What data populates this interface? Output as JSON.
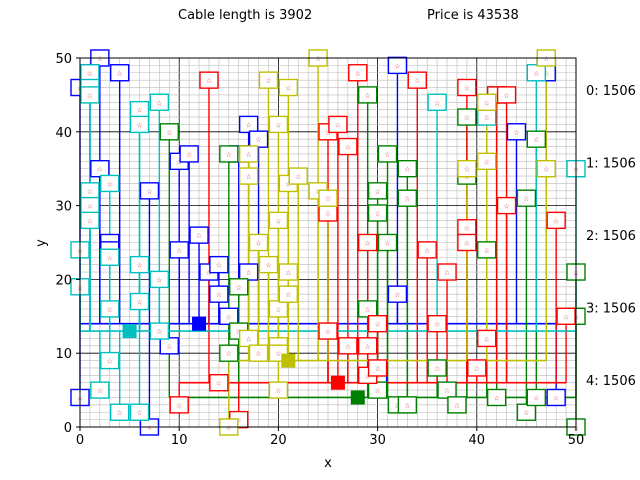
{
  "header": {
    "left_title": "Cable length is 3902",
    "right_title": "Price is 43538"
  },
  "colors": {
    "blue": "#0000ff",
    "green": "#008000",
    "red": "#ff0000",
    "cyan": "#00bfbf",
    "yellow": "#bfbf00",
    "grid_major": "#000000",
    "grid_minor": "#bbbbbb",
    "marker_star": "#cc3333"
  },
  "chart_data": {
    "type": "scatter",
    "xlabel": "x",
    "ylabel": "y",
    "xlim": [
      0,
      50
    ],
    "ylim": [
      0,
      50
    ],
    "xticks": [
      0,
      10,
      20,
      30,
      40,
      50
    ],
    "yticks": [
      0,
      10,
      20,
      30,
      40,
      50
    ],
    "grid": "major-and-minor",
    "right_labels": [
      "0: 1506",
      "1: 1506",
      "2: 1506",
      "3: 1506",
      "4: 1506"
    ],
    "series": [
      {
        "color": "blue",
        "hub": [
          12,
          14
        ],
        "trunk_y": 14,
        "points": [
          [
            0,
            46
          ],
          [
            0,
            4
          ],
          [
            2,
            50
          ],
          [
            1,
            48
          ],
          [
            4,
            48
          ],
          [
            3,
            25
          ],
          [
            3,
            24
          ],
          [
            2,
            35
          ],
          [
            7,
            32
          ],
          [
            7,
            0
          ],
          [
            9,
            11
          ],
          [
            10,
            36
          ],
          [
            10,
            24
          ],
          [
            11,
            37
          ],
          [
            12,
            26
          ],
          [
            13,
            21
          ],
          [
            14,
            22
          ],
          [
            14,
            18
          ],
          [
            15,
            15
          ],
          [
            16,
            37
          ],
          [
            17,
            41
          ],
          [
            18,
            39
          ],
          [
            17,
            21
          ],
          [
            32,
            49
          ],
          [
            30,
            7
          ],
          [
            32,
            18
          ],
          [
            44,
            40
          ],
          [
            47,
            48
          ],
          [
            48,
            4
          ]
        ]
      },
      {
        "color": "green",
        "hub": [
          28,
          4
        ],
        "trunk_y": 4,
        "points": [
          [
            9,
            40
          ],
          [
            15,
            37
          ],
          [
            16,
            19
          ],
          [
            15,
            10
          ],
          [
            16,
            13
          ],
          [
            29,
            45
          ],
          [
            30,
            32
          ],
          [
            30,
            29
          ],
          [
            30,
            5
          ],
          [
            31,
            37
          ],
          [
            31,
            25
          ],
          [
            33,
            35
          ],
          [
            33,
            31
          ],
          [
            32,
            3
          ],
          [
            33,
            3
          ],
          [
            29,
            16
          ],
          [
            36,
            8
          ],
          [
            37,
            5
          ],
          [
            38,
            3
          ],
          [
            39,
            34
          ],
          [
            39,
            42
          ],
          [
            41,
            24
          ],
          [
            42,
            45
          ],
          [
            42,
            4
          ],
          [
            45,
            31
          ],
          [
            45,
            2
          ],
          [
            46,
            4
          ],
          [
            46,
            39
          ],
          [
            50,
            21
          ],
          [
            50,
            15
          ],
          [
            50,
            0
          ]
        ]
      },
      {
        "color": "red",
        "hub": [
          26,
          6
        ],
        "trunk_y": 6,
        "points": [
          [
            10,
            3
          ],
          [
            13,
            47
          ],
          [
            14,
            6
          ],
          [
            16,
            1
          ],
          [
            25,
            40
          ],
          [
            25,
            29
          ],
          [
            26,
            41
          ],
          [
            27,
            38
          ],
          [
            25,
            13
          ],
          [
            27,
            11
          ],
          [
            28,
            48
          ],
          [
            29,
            25
          ],
          [
            29,
            11
          ],
          [
            29,
            7
          ],
          [
            30,
            14
          ],
          [
            30,
            8
          ],
          [
            34,
            47
          ],
          [
            35,
            24
          ],
          [
            36,
            14
          ],
          [
            37,
            21
          ],
          [
            39,
            46
          ],
          [
            39,
            27
          ],
          [
            39,
            25
          ],
          [
            41,
            12
          ],
          [
            40,
            8
          ],
          [
            42,
            45
          ],
          [
            43,
            45
          ],
          [
            43,
            30
          ],
          [
            48,
            28
          ],
          [
            49,
            15
          ]
        ]
      },
      {
        "color": "cyan",
        "hub": [
          5,
          13
        ],
        "trunk_y": 13,
        "points": [
          [
            1,
            48
          ],
          [
            1,
            46
          ],
          [
            1,
            45
          ],
          [
            1,
            32
          ],
          [
            1,
            30
          ],
          [
            1,
            28
          ],
          [
            0,
            24
          ],
          [
            0,
            19
          ],
          [
            3,
            33
          ],
          [
            3,
            23
          ],
          [
            3,
            16
          ],
          [
            3,
            9
          ],
          [
            2,
            5
          ],
          [
            4,
            2
          ],
          [
            6,
            2
          ],
          [
            6,
            22
          ],
          [
            6,
            17
          ],
          [
            6,
            43
          ],
          [
            6,
            41
          ],
          [
            8,
            44
          ],
          [
            8,
            20
          ],
          [
            8,
            13
          ],
          [
            36,
            44
          ],
          [
            41,
            42
          ],
          [
            46,
            48
          ],
          [
            50,
            35
          ]
        ]
      },
      {
        "color": "yellow",
        "hub": [
          21,
          9
        ],
        "trunk_y": 9,
        "points": [
          [
            15,
            0
          ],
          [
            17,
            12
          ],
          [
            17,
            34
          ],
          [
            17,
            37
          ],
          [
            18,
            10
          ],
          [
            18,
            25
          ],
          [
            19,
            47
          ],
          [
            19,
            22
          ],
          [
            20,
            28
          ],
          [
            20,
            41
          ],
          [
            20,
            16
          ],
          [
            20,
            11
          ],
          [
            20,
            10
          ],
          [
            20,
            5
          ],
          [
            21,
            46
          ],
          [
            21,
            33
          ],
          [
            21,
            21
          ],
          [
            21,
            18
          ],
          [
            22,
            34
          ],
          [
            24,
            50
          ],
          [
            24,
            32
          ],
          [
            25,
            31
          ],
          [
            39,
            35
          ],
          [
            41,
            36
          ],
          [
            41,
            44
          ],
          [
            47,
            35
          ],
          [
            47,
            50
          ]
        ]
      }
    ]
  }
}
